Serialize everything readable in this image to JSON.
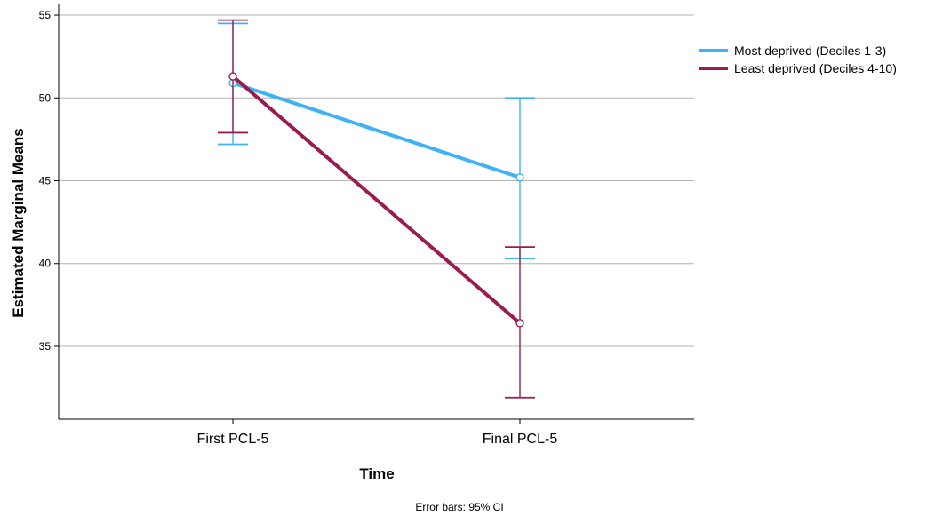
{
  "chart_data": {
    "type": "line",
    "title": "",
    "xlabel": "Time",
    "ylabel": "Estimated Marginal Means",
    "categories": [
      "First PCL-5",
      "Final PCL-5"
    ],
    "yticks": [
      35,
      40,
      45,
      50,
      55
    ],
    "ylim": [
      30.6,
      55.7
    ],
    "grid": true,
    "legend_position": "top-right",
    "footnote": "Error bars: 95% CI",
    "series": [
      {
        "name": "Most deprived (Deciles 1-3)",
        "color": "#3fb1f5",
        "values": [
          50.9,
          45.2
        ],
        "ci_lower": [
          47.2,
          40.3
        ],
        "ci_upper": [
          54.5,
          50.0
        ]
      },
      {
        "name": "Least deprived (Deciles 4-10)",
        "color": "#9b1b4f",
        "values": [
          51.3,
          36.4
        ],
        "ci_lower": [
          47.9,
          31.9
        ],
        "ci_upper": [
          54.7,
          41.0
        ]
      }
    ]
  }
}
